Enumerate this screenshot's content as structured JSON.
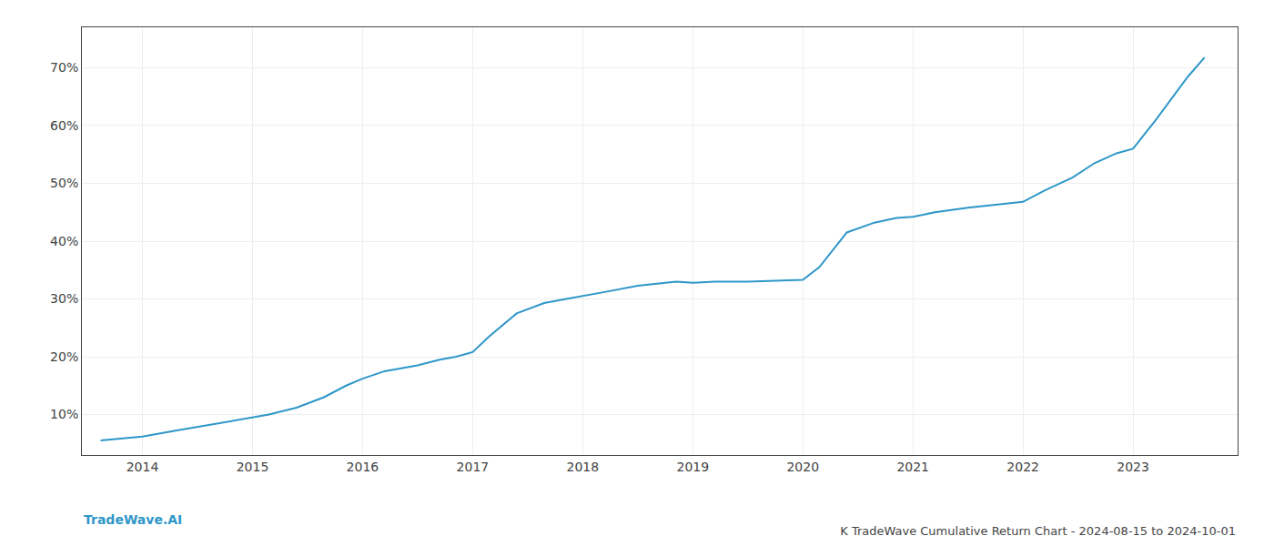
{
  "chart_data": {
    "type": "line",
    "title": "K TradeWave Cumulative Return Chart - 2024-08-15 to 2024-10-01",
    "annotations": [
      "TradeWave.AI"
    ],
    "color": "#2e97c8",
    "grid": true,
    "x": [
      2013.62,
      2014.0,
      2014.3,
      2014.6,
      2014.85,
      2015.0,
      2015.15,
      2015.4,
      2015.65,
      2015.85,
      2016.0,
      2016.2,
      2016.5,
      2016.7,
      2016.85,
      2017.0,
      2017.15,
      2017.4,
      2017.65,
      2017.85,
      2018.0,
      2018.2,
      2018.5,
      2018.7,
      2018.85,
      2019.0,
      2019.2,
      2019.5,
      2019.7,
      2019.85,
      2020.0,
      2020.15,
      2020.4,
      2020.65,
      2020.85,
      2021.0,
      2021.2,
      2021.5,
      2021.7,
      2021.85,
      2022.0,
      2022.2,
      2022.45,
      2022.65,
      2022.85,
      2023.0,
      2023.2,
      2023.5,
      2023.65
    ],
    "values": [
      0.055,
      0.062,
      0.072,
      0.082,
      0.09,
      0.095,
      0.1,
      0.112,
      0.13,
      0.15,
      0.162,
      0.175,
      0.185,
      0.195,
      0.2,
      0.208,
      0.235,
      0.275,
      0.293,
      0.3,
      0.305,
      0.312,
      0.323,
      0.327,
      0.33,
      0.328,
      0.33,
      0.33,
      0.331,
      0.332,
      0.333,
      0.355,
      0.415,
      0.432,
      0.44,
      0.442,
      0.45,
      0.458,
      0.462,
      0.465,
      0.468,
      0.488,
      0.51,
      0.535,
      0.552,
      0.56,
      0.608,
      0.685,
      0.718
    ],
    "xlim": [
      2013.45,
      2023.95
    ],
    "xticks": [
      2014,
      2015,
      2016,
      2017,
      2018,
      2019,
      2020,
      2021,
      2022,
      2023
    ],
    "ylim": [
      0.03,
      0.77
    ],
    "yticks": [
      {
        "value": 0.1,
        "label": "10%"
      },
      {
        "value": 0.2,
        "label": "20%"
      },
      {
        "value": 0.3,
        "label": "30%"
      },
      {
        "value": 0.4,
        "label": "40%"
      },
      {
        "value": 0.5,
        "label": "50%"
      },
      {
        "value": 0.6,
        "label": "60%"
      },
      {
        "value": 0.7,
        "label": "70%"
      }
    ]
  }
}
